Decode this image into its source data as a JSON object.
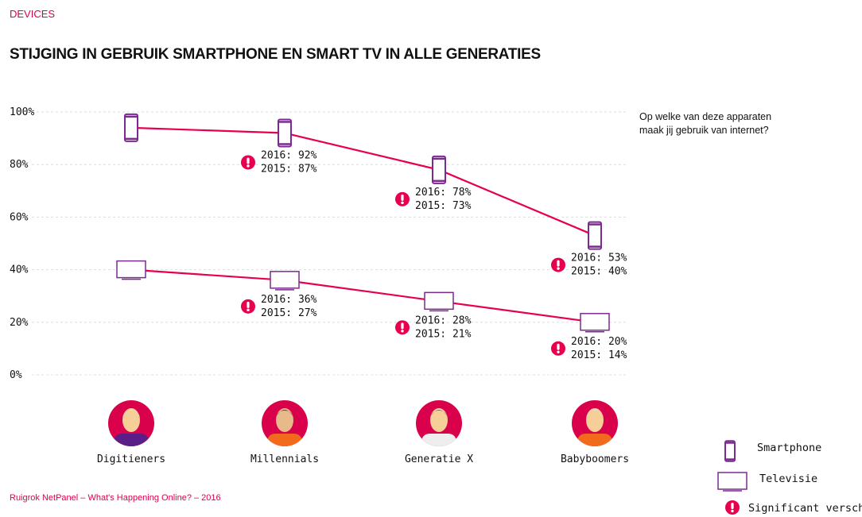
{
  "header": {
    "section": "DEVICES",
    "title": "STIJGING IN GEBRUIK SMARTPHONE EN SMART TV IN ALLE GENERATIES"
  },
  "question": "Op welke van deze apparaten maak jij gebruik van internet?",
  "footer": "Ruigrok NetPanel – What's Happening Online? – 2016",
  "colors": {
    "line": "#e6004f",
    "icon": "#7b2a90",
    "grid": "#dddddd",
    "avatar_bg": "#d9004c"
  },
  "legend": {
    "smartphone": "Smartphone",
    "tv": "Televisie",
    "significant": "Significant verschil",
    "significant_icon": "exclamation-circle-icon"
  },
  "chart_data": {
    "type": "line",
    "title": "STIJGING IN GEBRUIK SMARTPHONE EN SMART TV IN ALLE GENERATIES",
    "categories": [
      "Digitieners",
      "Millennials",
      "Generatie X",
      "Babyboomers"
    ],
    "ylim": [
      0,
      100
    ],
    "yticks": [
      0,
      20,
      40,
      60,
      80,
      100
    ],
    "ytick_labels": [
      "0%",
      "20%",
      "40%",
      "60%",
      "80%",
      "100%"
    ],
    "grid": true,
    "legend_position": "bottom-right",
    "series": [
      {
        "name": "Smartphone",
        "values": [
          94,
          92,
          78,
          53
        ],
        "values_2015": [
          null,
          87,
          73,
          40
        ],
        "labels": [
          null,
          [
            "2016: 92%",
            "2015: 87%"
          ],
          [
            "2016: 78%",
            "2015: 73%"
          ],
          [
            "2016: 53%",
            "2015: 40%"
          ]
        ],
        "significant": [
          false,
          true,
          true,
          true
        ]
      },
      {
        "name": "Televisie",
        "values": [
          40,
          36,
          28,
          20
        ],
        "values_2015": [
          null,
          27,
          21,
          14
        ],
        "labels": [
          null,
          [
            "2016: 36%",
            "2015: 27%"
          ],
          [
            "2016: 28%",
            "2015: 21%"
          ],
          [
            "2016: 20%",
            "2015: 14%"
          ]
        ],
        "significant": [
          false,
          true,
          true,
          true
        ]
      }
    ]
  }
}
